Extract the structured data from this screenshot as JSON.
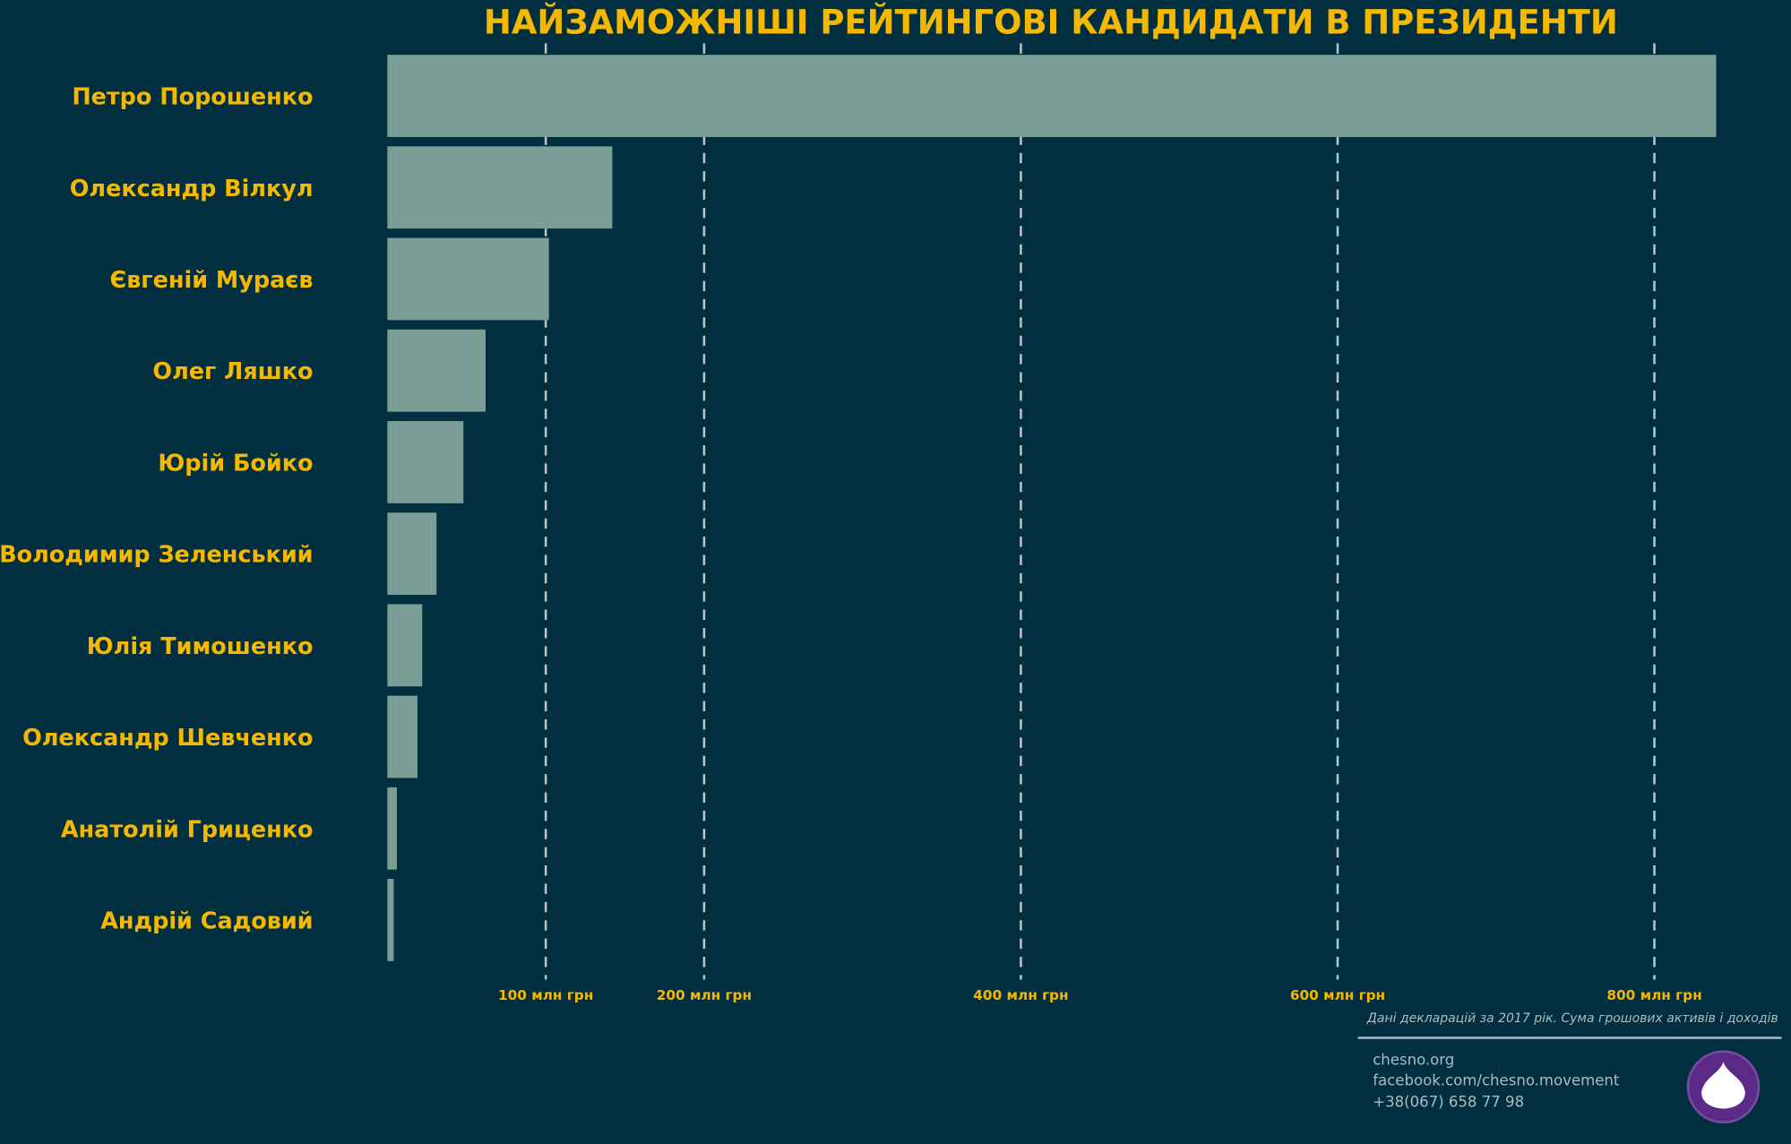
{
  "chart_data": {
    "type": "bar",
    "orientation": "horizontal",
    "title": "НАЙЗАМОЖНІШІ РЕЙТИНГОВІ КАНДИДАТИ В ПРЕЗИДЕНТИ",
    "categories": [
      "Петро Порошенко",
      "Олександр Вілкул",
      "Євгеній Мураєв",
      "Олег Ляшко",
      "Юрій Бойко",
      "Володимир Зеленський",
      "Юлія Тимошенко",
      "Олександр Шевченко",
      "Анатолій Гриценко",
      "Андрій Садовий"
    ],
    "values": [
      839,
      142,
      102,
      62,
      48,
      31,
      22,
      19,
      6,
      4
    ],
    "color": "#7a9e96",
    "xlim": [
      0,
      850
    ],
    "xticks": [
      {
        "value": 100,
        "label": "100 млн грн"
      },
      {
        "value": 200,
        "label": "200 млн грн"
      },
      {
        "value": 400,
        "label": "400 млн грн"
      },
      {
        "value": 600,
        "label": "600 млн грн"
      },
      {
        "value": 800,
        "label": "800 млн грн"
      }
    ],
    "grid": true,
    "note": "Дані декларацій за 2017 рік. Сума грошових активів і доходів",
    "contacts": [
      "chesno.org",
      "facebook.com/chesno.movement",
      "+38(067) 658 77 98"
    ]
  }
}
